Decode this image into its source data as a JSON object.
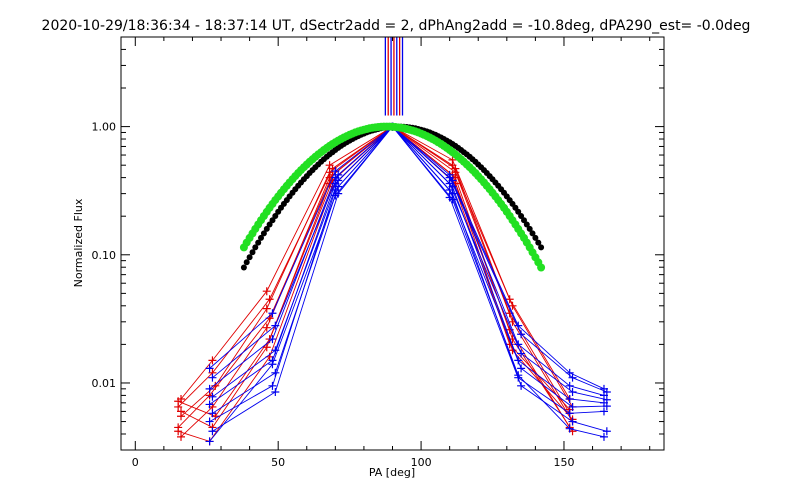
{
  "chart_data": {
    "type": "line",
    "title": "2020-10-29/18:36:34 - 18:37:14 UT, dSectr2add = 2, dPhAng2add = -10.8deg, dPA290_est= -0.0deg",
    "xlabel": "PA [deg]",
    "ylabel": "Normalized Flux",
    "xlim": [
      -5,
      185
    ],
    "ylim": [
      0.003,
      5.0
    ],
    "yscale": "log",
    "x_ticks": [
      0,
      50,
      100,
      150
    ],
    "x_tick_labels": [
      "0",
      "50",
      "100",
      "150"
    ],
    "y_ticks": [
      0.01,
      0.1,
      1.0
    ],
    "y_tick_labels": [
      "0.01",
      "0.10",
      "1.00"
    ],
    "colors": {
      "red": "#e00000",
      "blue": "#0000ee",
      "black": "#000000",
      "green": "#22e022"
    },
    "series": [
      {
        "name": "red-1",
        "color": "red",
        "x": [
          16,
          27,
          46,
          68,
          90,
          111,
          131,
          152
        ],
        "y": [
          0.0075,
          0.015,
          0.052,
          0.5,
          1.0,
          0.55,
          0.045,
          0.0075
        ]
      },
      {
        "name": "red-2",
        "color": "red",
        "x": [
          15,
          27,
          47,
          69,
          90,
          111,
          132,
          153
        ],
        "y": [
          0.0065,
          0.012,
          0.045,
          0.47,
          1.0,
          0.5,
          0.04,
          0.0065
        ]
      },
      {
        "name": "red-3",
        "color": "red",
        "x": [
          16,
          28,
          46,
          68,
          90,
          112,
          131,
          152
        ],
        "y": [
          0.0055,
          0.0095,
          0.038,
          0.44,
          1.0,
          0.47,
          0.035,
          0.0058
        ]
      },
      {
        "name": "red-4",
        "color": "red",
        "x": [
          15,
          26,
          47,
          69,
          90,
          112,
          132,
          153
        ],
        "y": [
          0.0045,
          0.008,
          0.032,
          0.42,
          1.0,
          0.44,
          0.03,
          0.005
        ]
      },
      {
        "name": "red-5",
        "color": "red",
        "x": [
          16,
          27,
          46,
          68,
          90,
          111,
          131,
          152
        ],
        "y": [
          0.0038,
          0.0065,
          0.027,
          0.4,
          1.0,
          0.42,
          0.026,
          0.0045
        ]
      },
      {
        "name": "red-6",
        "color": "red",
        "x": [
          15,
          28,
          47,
          69,
          90,
          112,
          132,
          153
        ],
        "y": [
          0.0072,
          0.0055,
          0.022,
          0.38,
          1.0,
          0.4,
          0.022,
          0.0042
        ]
      },
      {
        "name": "red-7",
        "color": "red",
        "x": [
          16,
          27,
          46,
          68,
          90,
          111,
          131,
          152
        ],
        "y": [
          0.006,
          0.0045,
          0.019,
          0.36,
          1.0,
          0.38,
          0.02,
          0.0062
        ]
      },
      {
        "name": "red-8",
        "color": "red",
        "x": [
          15,
          26,
          47,
          69,
          90,
          112,
          132,
          153
        ],
        "y": [
          0.0042,
          0.0035,
          0.016,
          0.34,
          1.0,
          0.36,
          0.018,
          0.0052
        ]
      },
      {
        "name": "blue-1",
        "color": "blue",
        "x": [
          26,
          48,
          70,
          90,
          110,
          134,
          152,
          164
        ],
        "y": [
          0.013,
          0.035,
          0.45,
          1.0,
          0.42,
          0.028,
          0.012,
          0.009
        ]
      },
      {
        "name": "blue-2",
        "color": "blue",
        "x": [
          27,
          49,
          71,
          90,
          110,
          135,
          153,
          165
        ],
        "y": [
          0.011,
          0.028,
          0.42,
          1.0,
          0.4,
          0.024,
          0.011,
          0.0085
        ]
      },
      {
        "name": "blue-3",
        "color": "blue",
        "x": [
          26,
          48,
          70,
          90,
          111,
          134,
          152,
          164
        ],
        "y": [
          0.009,
          0.022,
          0.4,
          1.0,
          0.38,
          0.02,
          0.0095,
          0.008
        ]
      },
      {
        "name": "blue-4",
        "color": "blue",
        "x": [
          27,
          49,
          71,
          90,
          110,
          135,
          153,
          165
        ],
        "y": [
          0.0078,
          0.018,
          0.38,
          1.0,
          0.36,
          0.017,
          0.0085,
          0.0074
        ]
      },
      {
        "name": "blue-5",
        "color": "blue",
        "x": [
          26,
          48,
          70,
          90,
          111,
          134,
          152,
          164
        ],
        "y": [
          0.0068,
          0.015,
          0.36,
          1.0,
          0.34,
          0.015,
          0.0075,
          0.007
        ]
      },
      {
        "name": "blue-6",
        "color": "blue",
        "x": [
          27,
          49,
          71,
          90,
          110,
          135,
          153,
          165
        ],
        "y": [
          0.0058,
          0.012,
          0.34,
          1.0,
          0.32,
          0.013,
          0.0065,
          0.0066
        ]
      },
      {
        "name": "blue-7",
        "color": "blue",
        "x": [
          26,
          48,
          70,
          90,
          111,
          134,
          152,
          164
        ],
        "y": [
          0.005,
          0.0095,
          0.32,
          1.0,
          0.3,
          0.011,
          0.0058,
          0.006
        ]
      },
      {
        "name": "blue-8",
        "color": "blue",
        "x": [
          27,
          49,
          71,
          90,
          110,
          135,
          153,
          165
        ],
        "y": [
          0.0042,
          0.0085,
          0.3,
          1.0,
          0.28,
          0.0095,
          0.005,
          0.0042
        ]
      },
      {
        "name": "blue-9",
        "color": "blue",
        "x": [
          26,
          48,
          70,
          90,
          111,
          134,
          152,
          164
        ],
        "y": [
          0.0035,
          0.014,
          0.29,
          1.0,
          0.27,
          0.0115,
          0.0044,
          0.0038
        ]
      }
    ],
    "model_black": {
      "name": "model-black",
      "color": "black",
      "center": 92,
      "width": 24,
      "xmin": 38,
      "xmax": 142
    },
    "model_green": {
      "name": "model-green",
      "color": "green",
      "center": 88,
      "width": 24,
      "xmin": 38,
      "xmax": 142
    },
    "top_markers": [
      {
        "x": 87.5,
        "color": "blue"
      },
      {
        "x": 88.5,
        "color": "red"
      },
      {
        "x": 89.5,
        "color": "blue"
      },
      {
        "x": 90.5,
        "color": "red"
      },
      {
        "x": 91.5,
        "color": "blue"
      },
      {
        "x": 92.5,
        "color": "red"
      },
      {
        "x": 93.5,
        "color": "blue"
      }
    ]
  }
}
